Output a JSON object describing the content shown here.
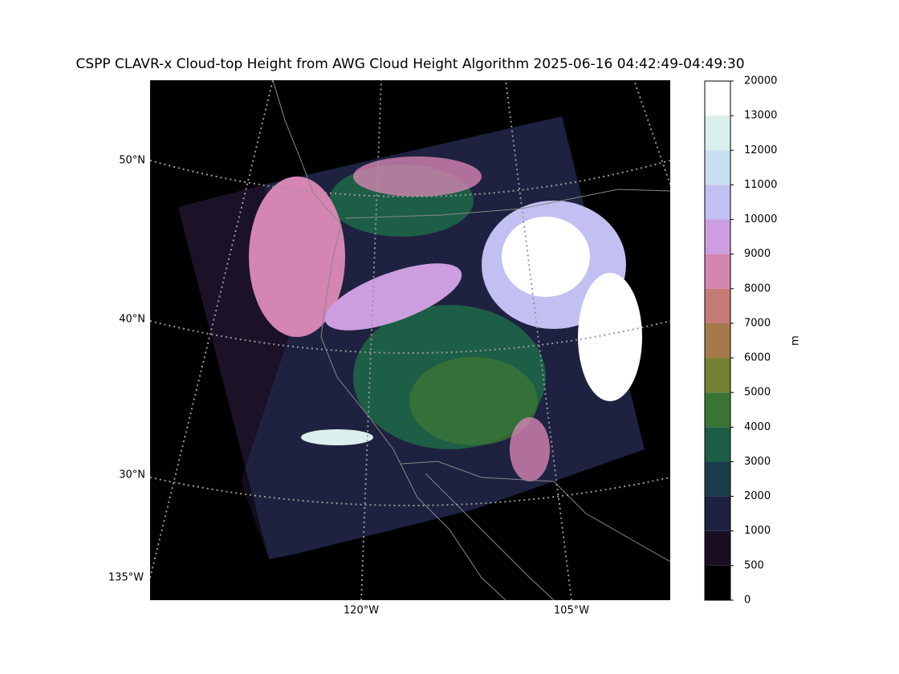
{
  "title": "CSPP CLAVR-x Cloud-top Height from AWG Cloud Height Algorithm 2025-06-16 04:42:49-04:49:30",
  "map": {
    "lat_labels": [
      "50°N",
      "40°N",
      "30°N"
    ],
    "lon_labels": [
      "135°W",
      "120°W",
      "105°W"
    ]
  },
  "colorbar": {
    "label": "m",
    "ticks": [
      0,
      500,
      1000,
      2000,
      3000,
      4000,
      5000,
      6000,
      7000,
      8000,
      9000,
      10000,
      11000,
      12000,
      13000,
      20000
    ],
    "colors": [
      "#000000",
      "#1a0f22",
      "#1e2240",
      "#1a3d4a",
      "#1d5e46",
      "#3a7535",
      "#758032",
      "#a57a4b",
      "#c57a76",
      "#d485b2",
      "#cc9ee0",
      "#c2c0f2",
      "#c8dff2",
      "#dbf0ec",
      "#ffffff"
    ]
  }
}
